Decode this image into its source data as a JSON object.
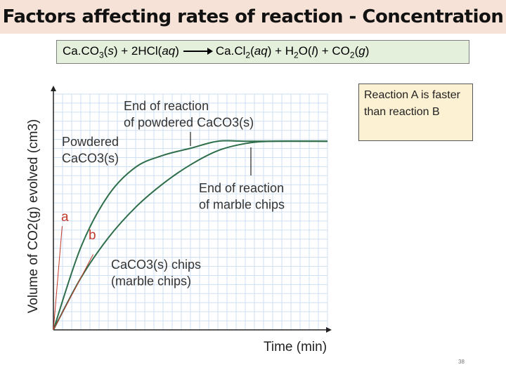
{
  "title": "Factors affecting rates of reaction - Concentration",
  "equation": {
    "reactants": "CaCO3(s) + 2HCl(aq)",
    "products": "CaCl2(aq) + H2O(l) + CO2(g)"
  },
  "callout": "Reaction A is faster than reaction B",
  "slide_number": "38",
  "colors": {
    "curve": "#2e6e4a",
    "tangent": "#c0392b",
    "label_red": "#c0392b",
    "grid": "#cfe0f2",
    "accent_title_bg": "#f6e2d6"
  },
  "chart_data": {
    "type": "line",
    "xlabel": "Time (min)",
    "ylabel": "Volume of CO2(g) evolved (cm3)",
    "xlim": [
      0,
      10
    ],
    "ylim": [
      0,
      10
    ],
    "grid": true,
    "series": [
      {
        "label": "Powdered CaCO3(s)",
        "x": [
          0,
          1,
          2,
          3,
          4,
          5,
          6,
          7,
          8,
          10
        ],
        "y": [
          0,
          3.5,
          5.7,
          6.9,
          7.4,
          7.7,
          8.0,
          8.0,
          8.0,
          8.0
        ]
      },
      {
        "label": "CaCO3(s) chips (marble chips)",
        "x": [
          0,
          1,
          2,
          3,
          4,
          5,
          6,
          7,
          8,
          10
        ],
        "y": [
          0,
          2.2,
          3.9,
          5.2,
          6.2,
          7.0,
          7.6,
          7.9,
          8.0,
          8.0
        ]
      }
    ],
    "annotations": [
      {
        "text": "End of reaction of powdered CaCO3(s)"
      },
      {
        "text": "End of reaction of marble chips"
      },
      {
        "text": "a"
      },
      {
        "text": "b"
      }
    ]
  }
}
